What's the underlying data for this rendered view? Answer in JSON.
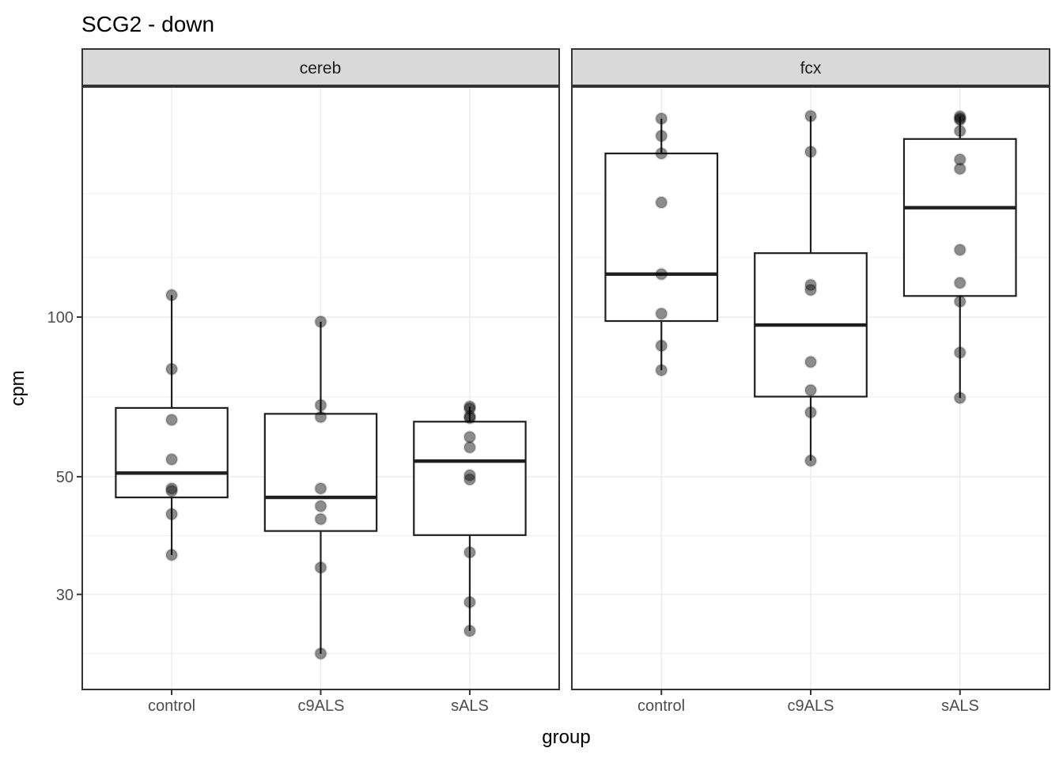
{
  "title": "SCG2 - down",
  "axes": {
    "x_title": "group",
    "y_title": "cpm",
    "y_tick_labels": [
      "100",
      "50",
      "30"
    ],
    "x_tick_labels": [
      "control",
      "c9ALS",
      "sALS"
    ]
  },
  "style": {
    "strip_fill": "#D9D9D9",
    "panel_fill": "#FFFFFF",
    "border": "#333333",
    "grid_major": "#EBEBEB",
    "grid_minor": "#F1F1F1",
    "box_stroke": "#1F1F1F",
    "point_color": "#000000",
    "tick_mark": "#333333",
    "tick_label_color": "#4D4D4D"
  },
  "chart_data": {
    "type": "boxplot",
    "title": "SCG2 - down",
    "xlabel": "group",
    "ylabel": "cpm",
    "scale": "log10",
    "ylim": [
      19.85,
      271.6
    ],
    "grid": true,
    "legend_position": "none",
    "y_major_breaks": [
      100,
      50,
      30
    ],
    "y_minor_breaks": [
      171,
      129.5,
      70.7,
      38.7,
      23.2
    ],
    "categories": [
      "control",
      "c9ALS",
      "sALS"
    ],
    "facets": [
      {
        "label": "cereb",
        "groups": [
          {
            "category": "control",
            "box": {
              "q1": 45.7,
              "median": 50.8,
              "q3": 67.4,
              "whisker_low": 35.6,
              "whisker_high": 110
            },
            "points": [
              110,
              79.8,
              64,
              53.9,
              47.5,
              47,
              42.5,
              35.6
            ]
          },
          {
            "category": "c9ALS",
            "box": {
              "q1": 39.5,
              "median": 45.7,
              "q3": 65.7,
              "whisker_low": 23.2,
              "whisker_high": 98
            },
            "points": [
              98,
              68.2,
              64.8,
              47.5,
              44,
              41.6,
              33.7,
              23.2
            ]
          },
          {
            "category": "sALS",
            "box": {
              "q1": 38.8,
              "median": 53.5,
              "q3": 63.5,
              "whisker_low": 25.6,
              "whisker_high": 67.8
            },
            "points": [
              67.8,
              67.2,
              65.0,
              64.5,
              59.4,
              56.8,
              50.3,
              49.4,
              36.0,
              29.0,
              25.6
            ]
          }
        ]
      },
      {
        "label": "fcx",
        "groups": [
          {
            "category": "control",
            "box": {
              "q1": 98.3,
              "median": 120.5,
              "q3": 203.5,
              "whisker_low": 79.4,
              "whisker_high": 236.7
            },
            "points": [
              236.7,
              219.6,
              203.5,
              164.5,
              120.5,
              101.5,
              88.3,
              79.4
            ]
          },
          {
            "category": "c9ALS",
            "box": {
              "q1": 70.8,
              "median": 96.6,
              "q3": 132,
              "whisker_low": 53.6,
              "whisker_high": 239.4
            },
            "points": [
              239.4,
              205,
              115,
              112.5,
              82.3,
              72.8,
              66.1,
              53.6
            ]
          },
          {
            "category": "sALS",
            "box": {
              "q1": 109.6,
              "median": 160.8,
              "q3": 216.7,
              "whisker_low": 70.4,
              "whisker_high": 239
            },
            "points": [
              239,
              237,
              235.5,
              224.3,
              198.2,
              190.4,
              133.9,
              116,
              107,
              85.7,
              70.4
            ]
          }
        ]
      }
    ]
  }
}
